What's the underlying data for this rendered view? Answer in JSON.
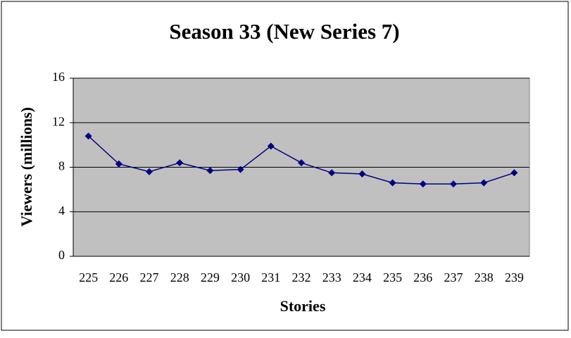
{
  "chart_data": {
    "type": "line",
    "title": "Season 33 (New Series 7)",
    "x_label": "Stories",
    "y_label": "Viewers (millions)",
    "categories": [
      "225",
      "226",
      "227",
      "228",
      "229",
      "230",
      "231",
      "232",
      "233",
      "234",
      "235",
      "236",
      "237",
      "238",
      "239"
    ],
    "values": [
      10.8,
      8.3,
      7.6,
      8.4,
      7.7,
      7.8,
      9.9,
      8.4,
      7.5,
      7.4,
      6.6,
      6.5,
      6.5,
      6.6,
      7.5
    ],
    "color": "#000080",
    "plot_background": "#c0c0c0",
    "ylim": [
      0,
      16
    ],
    "yticks": [
      0,
      4,
      8,
      12,
      16
    ],
    "grid": true
  }
}
